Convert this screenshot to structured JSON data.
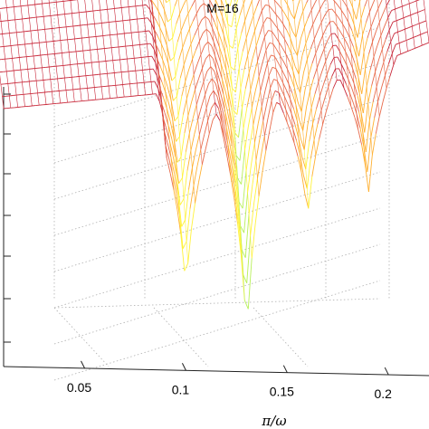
{
  "chart_data": {
    "type": "surface",
    "title": "M=16",
    "xlabel": "π/ω",
    "ylabel": "",
    "zlabel": "",
    "x_ticks": [
      "0.05",
      "0.1",
      "0.15",
      "0.2"
    ],
    "x_tick_values": [
      0.05,
      0.1,
      0.15,
      0.2
    ],
    "xlim": [
      0.01,
      0.22
    ],
    "grid": true,
    "colormap": [
      "#2b5fd9",
      "#3fd0c8",
      "#b8f05a",
      "#fff23a",
      "#ffb030",
      "#e86a4a",
      "#c8283a"
    ],
    "surface": {
      "x": [
        0.01,
        0.03,
        0.05,
        0.07,
        0.09,
        0.1,
        0.11,
        0.12,
        0.13,
        0.14,
        0.15,
        0.16,
        0.17,
        0.18,
        0.19,
        0.2,
        0.21,
        0.22
      ],
      "depth_rows": 14,
      "nulls_x": [
        0.1,
        0.13,
        0.16,
        0.19
      ]
    }
  }
}
